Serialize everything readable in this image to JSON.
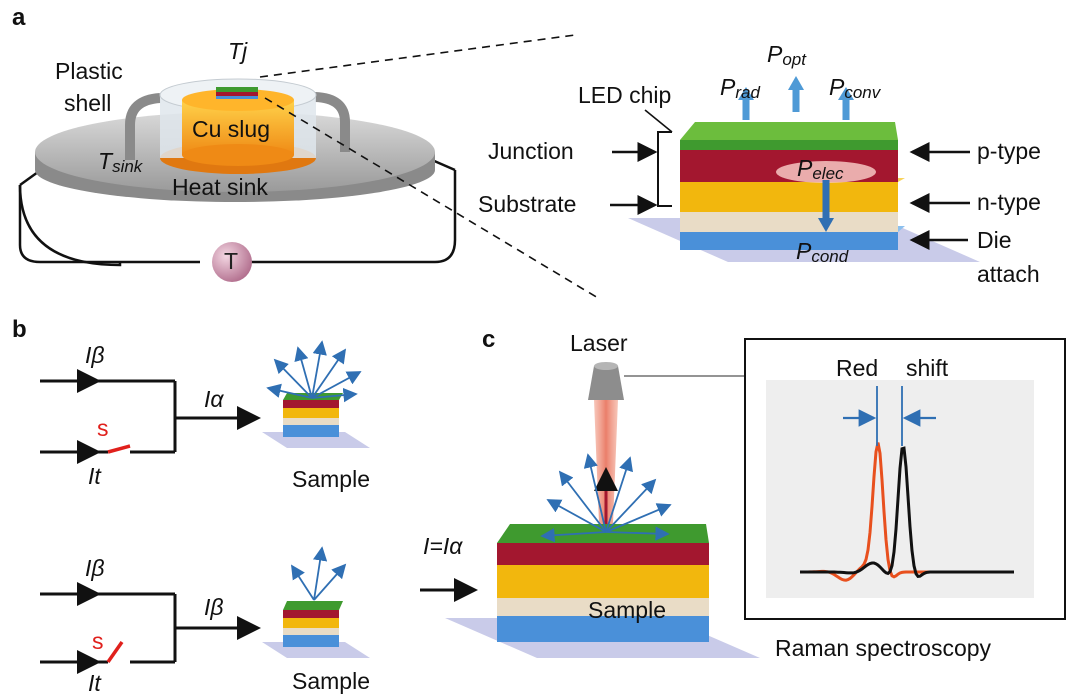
{
  "panels": {
    "a": "a",
    "b": "b",
    "c": "c"
  },
  "a": {
    "plastic": "Plastic",
    "shell": "shell",
    "tj": "Tj",
    "cu_slug": "Cu slug",
    "tsink_T": "T",
    "tsink_sub": "sink",
    "heat_sink": "Heat sink",
    "thermometer": "T",
    "led_chip": "LED chip",
    "junction": "Junction",
    "substrate": "Substrate",
    "p_type": "p-type",
    "n_type": "n-type",
    "die": "Die",
    "attach": "attach",
    "powers": {
      "P": "P",
      "opt": "opt",
      "rad": "rad",
      "conv": "conv",
      "elec": "elec",
      "cond": "cond"
    }
  },
  "b": {
    "top": {
      "i_beta": "Iβ",
      "switch": "s",
      "i_t": "It",
      "i_out": "Iα",
      "sample": "Sample"
    },
    "bottom": {
      "i_beta": "Iβ",
      "switch": "s",
      "i_t": "It",
      "i_out": "Iβ",
      "sample": "Sample"
    }
  },
  "c": {
    "laser": "Laser",
    "current": "I=Iα",
    "sample": "Sample",
    "red": "Red",
    "shift": "shift",
    "raman": "Raman spectroscopy"
  },
  "colors": {
    "green": "#3f9a2f",
    "maroon": "#a3172f",
    "yellow": "#f2b70d",
    "beige": "#e9dcc6",
    "blue_attach": "#4a90d9",
    "arrow_blue": "#2f6fb3",
    "spectrum_red": "#e8501e",
    "spectrum_black": "#111111",
    "slug_orange": "#f39a1e",
    "thermometer_pink": "#c98aa5"
  }
}
